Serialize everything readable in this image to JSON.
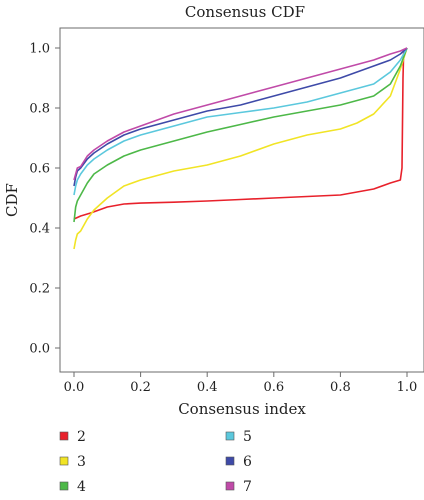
{
  "chart_data": {
    "type": "line",
    "title": "Consensus CDF",
    "xlabel": "Consensus index",
    "ylabel": "CDF",
    "xlim": [
      0,
      1
    ],
    "ylim": [
      0,
      1
    ],
    "xticks": [
      "0.0",
      "0.2",
      "0.4",
      "0.6",
      "0.8",
      "1.0"
    ],
    "yticks": [
      "0.0",
      "0.2",
      "0.4",
      "0.6",
      "0.8",
      "1.0"
    ],
    "grid": false,
    "legend_position": "bottom",
    "series": [
      {
        "name": "2",
        "color": "#e8212b",
        "points": [
          [
            0,
            0.43
          ],
          [
            0.02,
            0.44
          ],
          [
            0.05,
            0.45
          ],
          [
            0.1,
            0.47
          ],
          [
            0.15,
            0.48
          ],
          [
            0.2,
            0.483
          ],
          [
            0.3,
            0.486
          ],
          [
            0.4,
            0.49
          ],
          [
            0.5,
            0.495
          ],
          [
            0.6,
            0.5
          ],
          [
            0.7,
            0.505
          ],
          [
            0.8,
            0.51
          ],
          [
            0.85,
            0.52
          ],
          [
            0.9,
            0.53
          ],
          [
            0.95,
            0.55
          ],
          [
            0.98,
            0.56
          ],
          [
            0.985,
            0.6
          ],
          [
            0.988,
            0.9
          ],
          [
            0.99,
            0.99
          ],
          [
            1,
            1
          ]
        ]
      },
      {
        "name": "3",
        "color": "#f1e425",
        "points": [
          [
            0,
            0.33
          ],
          [
            0.005,
            0.36
          ],
          [
            0.01,
            0.38
          ],
          [
            0.02,
            0.39
          ],
          [
            0.04,
            0.43
          ],
          [
            0.06,
            0.46
          ],
          [
            0.1,
            0.5
          ],
          [
            0.15,
            0.54
          ],
          [
            0.2,
            0.56
          ],
          [
            0.3,
            0.59
          ],
          [
            0.4,
            0.61
          ],
          [
            0.5,
            0.64
          ],
          [
            0.6,
            0.68
          ],
          [
            0.7,
            0.71
          ],
          [
            0.8,
            0.73
          ],
          [
            0.85,
            0.75
          ],
          [
            0.9,
            0.78
          ],
          [
            0.95,
            0.84
          ],
          [
            0.98,
            0.93
          ],
          [
            1,
            1
          ]
        ]
      },
      {
        "name": "4",
        "color": "#4db848",
        "points": [
          [
            0,
            0.42
          ],
          [
            0.005,
            0.47
          ],
          [
            0.01,
            0.49
          ],
          [
            0.02,
            0.51
          ],
          [
            0.04,
            0.55
          ],
          [
            0.06,
            0.58
          ],
          [
            0.1,
            0.61
          ],
          [
            0.15,
            0.64
          ],
          [
            0.2,
            0.66
          ],
          [
            0.3,
            0.69
          ],
          [
            0.4,
            0.72
          ],
          [
            0.5,
            0.745
          ],
          [
            0.6,
            0.77
          ],
          [
            0.7,
            0.79
          ],
          [
            0.8,
            0.81
          ],
          [
            0.9,
            0.84
          ],
          [
            0.95,
            0.88
          ],
          [
            0.98,
            0.94
          ],
          [
            1,
            1
          ]
        ]
      },
      {
        "name": "5",
        "color": "#5bc8dd",
        "points": [
          [
            0,
            0.51
          ],
          [
            0.005,
            0.54
          ],
          [
            0.01,
            0.56
          ],
          [
            0.02,
            0.58
          ],
          [
            0.04,
            0.61
          ],
          [
            0.06,
            0.63
          ],
          [
            0.1,
            0.66
          ],
          [
            0.15,
            0.69
          ],
          [
            0.2,
            0.71
          ],
          [
            0.3,
            0.74
          ],
          [
            0.4,
            0.77
          ],
          [
            0.5,
            0.785
          ],
          [
            0.6,
            0.8
          ],
          [
            0.7,
            0.82
          ],
          [
            0.8,
            0.85
          ],
          [
            0.9,
            0.88
          ],
          [
            0.95,
            0.92
          ],
          [
            0.98,
            0.96
          ],
          [
            1,
            1
          ]
        ]
      },
      {
        "name": "6",
        "color": "#3e4aa8",
        "points": [
          [
            0,
            0.54
          ],
          [
            0.005,
            0.57
          ],
          [
            0.01,
            0.59
          ],
          [
            0.02,
            0.6
          ],
          [
            0.04,
            0.63
          ],
          [
            0.06,
            0.65
          ],
          [
            0.1,
            0.68
          ],
          [
            0.15,
            0.71
          ],
          [
            0.2,
            0.73
          ],
          [
            0.3,
            0.76
          ],
          [
            0.4,
            0.79
          ],
          [
            0.5,
            0.81
          ],
          [
            0.6,
            0.84
          ],
          [
            0.7,
            0.87
          ],
          [
            0.8,
            0.9
          ],
          [
            0.9,
            0.94
          ],
          [
            0.95,
            0.96
          ],
          [
            0.98,
            0.98
          ],
          [
            1,
            1
          ]
        ]
      },
      {
        "name": "7",
        "color": "#c04aa8",
        "points": [
          [
            0,
            0.56
          ],
          [
            0.005,
            0.58
          ],
          [
            0.01,
            0.6
          ],
          [
            0.02,
            0.605
          ],
          [
            0.04,
            0.64
          ],
          [
            0.06,
            0.66
          ],
          [
            0.1,
            0.69
          ],
          [
            0.15,
            0.72
          ],
          [
            0.2,
            0.74
          ],
          [
            0.3,
            0.78
          ],
          [
            0.4,
            0.81
          ],
          [
            0.5,
            0.84
          ],
          [
            0.6,
            0.87
          ],
          [
            0.7,
            0.9
          ],
          [
            0.8,
            0.93
          ],
          [
            0.9,
            0.96
          ],
          [
            0.95,
            0.98
          ],
          [
            0.98,
            0.99
          ],
          [
            1,
            1
          ]
        ]
      }
    ]
  }
}
